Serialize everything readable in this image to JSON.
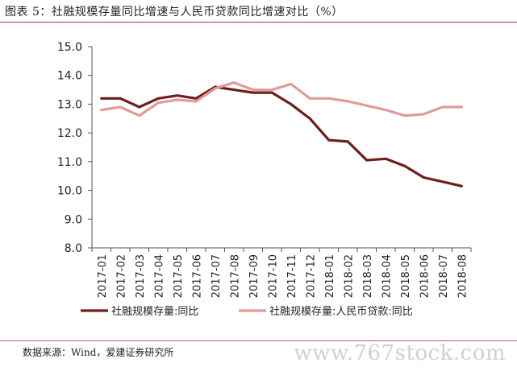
{
  "figure": {
    "title": "图表 5：社融规模存量同比增速与人民币贷款同比增速对比（%）",
    "source": "数据来源：Wind，爱建证券研究所",
    "watermark": "www.767stock.com"
  },
  "chart_data": {
    "type": "line",
    "title": "",
    "xlabel": "",
    "ylabel": "",
    "categories": [
      "2017-01",
      "2017-02",
      "2017-03",
      "2017-04",
      "2017-05",
      "2017-06",
      "2017-07",
      "2017-08",
      "2017-09",
      "2017-10",
      "2017-11",
      "2017-12",
      "2018-01",
      "2018-02",
      "2018-03",
      "2018-04",
      "2018-05",
      "2018-06",
      "2018-07",
      "2018-08"
    ],
    "ylim": [
      8.0,
      15.0
    ],
    "yticks": [
      "8.0",
      "9.0",
      "10.0",
      "11.0",
      "12.0",
      "13.0",
      "14.0",
      "15.0"
    ],
    "grid": false,
    "legend_position": "bottom",
    "series": [
      {
        "name": "社融规模存量:同比",
        "color": "#6b1f1f",
        "values": [
          13.2,
          13.2,
          12.9,
          13.2,
          13.3,
          13.2,
          13.6,
          13.5,
          13.4,
          13.4,
          13.0,
          12.5,
          11.75,
          11.7,
          11.05,
          11.1,
          10.85,
          10.45,
          10.3,
          10.15
        ]
      },
      {
        "name": "社融规模存量:人民币贷款:同比",
        "color": "#e09a9a",
        "values": [
          12.8,
          12.9,
          12.6,
          13.05,
          13.15,
          13.1,
          13.55,
          13.75,
          13.5,
          13.5,
          13.7,
          13.2,
          13.2,
          13.1,
          12.95,
          12.8,
          12.6,
          12.65,
          12.9,
          12.9
        ]
      }
    ]
  }
}
